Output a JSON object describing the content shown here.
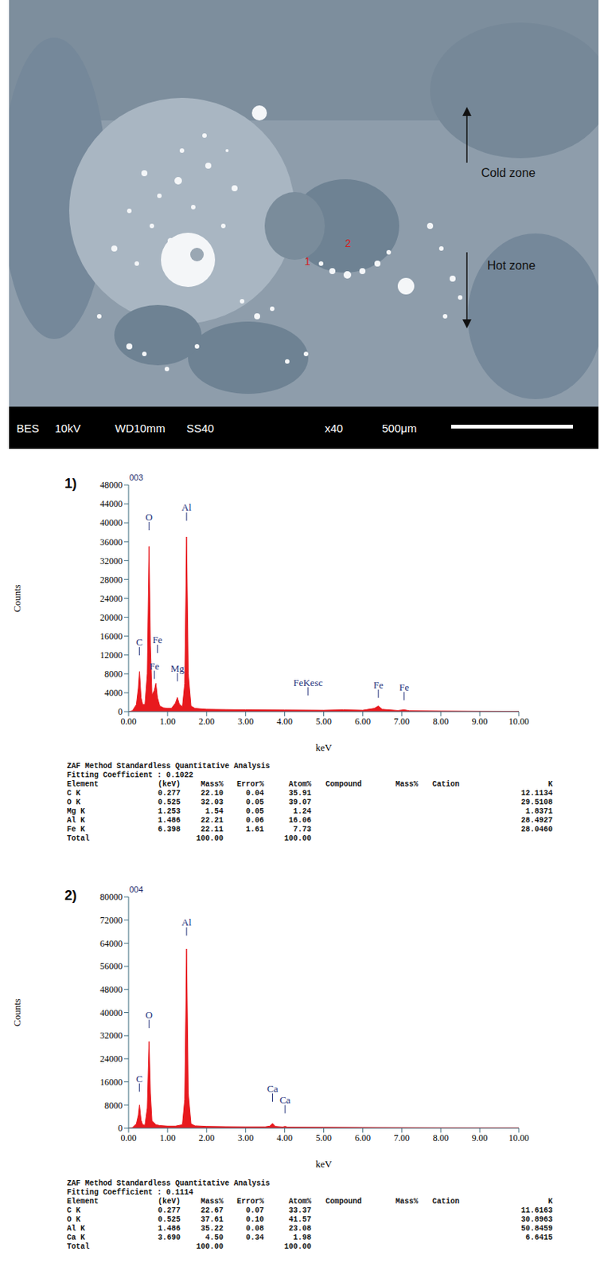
{
  "micrograph": {
    "annotations": [
      "Cold zone",
      "Hot zone"
    ],
    "points": [
      "1",
      "2"
    ],
    "info_bar": [
      "BES",
      "10kV",
      "WD10mm",
      "SS40",
      "x40",
      "500μm"
    ]
  },
  "chart_data": [
    {
      "type": "area",
      "panel": "1)",
      "title": "003",
      "x_label": "keV",
      "y_label": "Counts",
      "color": "#e8191e",
      "xlim": [
        0,
        10
      ],
      "xticks": [
        {
          "value": 0,
          "label": "0.00"
        },
        {
          "value": 1,
          "label": "1.00"
        },
        {
          "value": 2,
          "label": "2.00"
        },
        {
          "value": 3,
          "label": "3.00"
        },
        {
          "value": 4,
          "label": "4.00"
        },
        {
          "value": 5,
          "label": "5.00"
        },
        {
          "value": 6,
          "label": "6.00"
        },
        {
          "value": 7,
          "label": "7.00"
        },
        {
          "value": 8,
          "label": "8.00"
        },
        {
          "value": 9,
          "label": "9.00"
        },
        {
          "value": 10,
          "label": "10.00"
        }
      ],
      "ylim": [
        0,
        48000
      ],
      "yticks": [
        0,
        4000,
        8000,
        12000,
        16000,
        20000,
        24000,
        28000,
        32000,
        36000,
        40000,
        44000,
        48000
      ],
      "x": [
        0,
        0.1,
        0.2,
        0.25,
        0.28,
        0.32,
        0.36,
        0.42,
        0.48,
        0.525,
        0.56,
        0.6,
        0.66,
        0.7,
        0.74,
        0.8,
        0.9,
        1.0,
        1.1,
        1.2,
        1.25,
        1.3,
        1.38,
        1.44,
        1.486,
        1.53,
        1.6,
        1.7,
        2.0,
        2.5,
        3.0,
        4.0,
        5.0,
        5.5,
        6.0,
        6.3,
        6.4,
        6.5,
        6.9,
        7.06,
        7.2,
        8.0,
        9.0,
        10.0
      ],
      "values": [
        0,
        200,
        1500,
        5000,
        8500,
        3000,
        1500,
        1500,
        8000,
        35000,
        14000,
        3500,
        4500,
        6000,
        3000,
        1200,
        800,
        700,
        700,
        1800,
        3000,
        1600,
        1000,
        6000,
        37000,
        8000,
        1200,
        700,
        500,
        450,
        400,
        350,
        300,
        400,
        300,
        700,
        1200,
        500,
        250,
        400,
        200,
        150,
        100,
        80
      ],
      "peak_labels": [
        {
          "label": "C",
          "x": 0.277,
          "y": 14000
        },
        {
          "label": "O",
          "x": 0.525,
          "y": 40500
        },
        {
          "label": "Fe",
          "x": 0.74,
          "y": 14500
        },
        {
          "label": "Fe",
          "x": 0.66,
          "y": 9000
        },
        {
          "label": "Mg",
          "x": 1.253,
          "y": 8500
        },
        {
          "label": "Al",
          "x": 1.486,
          "y": 42500
        },
        {
          "label": "FeKesc",
          "x": 4.6,
          "y": 5500
        },
        {
          "label": "Fe",
          "x": 6.4,
          "y": 5000
        },
        {
          "label": "Fe",
          "x": 7.06,
          "y": 4500
        }
      ],
      "table": {
        "method": "ZAF Method Standardless Quantitative Analysis",
        "fitting": "Fitting Coefficient : 0.1022",
        "columns": [
          "Element",
          "(keV)",
          "Mass%",
          "Error%",
          "Atom%",
          "Compound",
          "Mass%",
          "Cation",
          "K"
        ],
        "rows": [
          [
            "C K",
            "0.277",
            "22.10",
            "0.04",
            "35.91",
            null,
            null,
            null,
            "12.1134"
          ],
          [
            "O K",
            "0.525",
            "32.03",
            "0.05",
            "39.07",
            null,
            null,
            null,
            "29.5108"
          ],
          [
            "Mg K",
            "1.253",
            "1.54",
            "0.05",
            "1.24",
            null,
            null,
            null,
            "1.8371"
          ],
          [
            "Al K",
            "1.486",
            "22.21",
            "0.06",
            "16.06",
            null,
            null,
            null,
            "28.4927"
          ],
          [
            "Fe K",
            "6.398",
            "22.11",
            "1.61",
            "7.73",
            null,
            null,
            null,
            "28.0460"
          ],
          [
            "Total",
            null,
            "100.00",
            null,
            "100.00",
            null,
            null,
            null,
            null
          ]
        ]
      }
    },
    {
      "type": "area",
      "panel": "2)",
      "title": "004",
      "x_label": "keV",
      "y_label": "Counts",
      "color": "#e8191e",
      "xlim": [
        0,
        10
      ],
      "xticks": [
        {
          "value": 0,
          "label": "0.00"
        },
        {
          "value": 1,
          "label": "1.00"
        },
        {
          "value": 2,
          "label": "2.00"
        },
        {
          "value": 3,
          "label": "3.00"
        },
        {
          "value": 4,
          "label": "4.00"
        },
        {
          "value": 5,
          "label": "5.00"
        },
        {
          "value": 6,
          "label": "6.00"
        },
        {
          "value": 7,
          "label": "7.00"
        },
        {
          "value": 8,
          "label": "8.00"
        },
        {
          "value": 9,
          "label": "9.00"
        },
        {
          "value": 10,
          "label": "10.00"
        }
      ],
      "ylim": [
        0,
        80000
      ],
      "yticks": [
        0,
        8000,
        16000,
        24000,
        32000,
        40000,
        48000,
        56000,
        64000,
        72000,
        80000
      ],
      "x": [
        0,
        0.1,
        0.2,
        0.25,
        0.28,
        0.32,
        0.36,
        0.42,
        0.48,
        0.525,
        0.56,
        0.6,
        0.7,
        0.8,
        1.0,
        1.2,
        1.38,
        1.44,
        1.486,
        1.53,
        1.6,
        1.7,
        2.0,
        2.5,
        3.0,
        3.5,
        3.62,
        3.69,
        3.76,
        3.95,
        4.01,
        4.08,
        5.0,
        6.0,
        7.0,
        8.0,
        9.0,
        10.0
      ],
      "values": [
        0,
        200,
        1500,
        4500,
        8000,
        2800,
        1200,
        1000,
        7000,
        30000,
        12000,
        2500,
        1200,
        900,
        700,
        700,
        1200,
        10000,
        62000,
        12000,
        1500,
        800,
        600,
        500,
        450,
        450,
        700,
        1600,
        600,
        400,
        600,
        350,
        300,
        250,
        200,
        150,
        120,
        100
      ],
      "peak_labels": [
        {
          "label": "C",
          "x": 0.277,
          "y": 16000
        },
        {
          "label": "O",
          "x": 0.525,
          "y": 38000
        },
        {
          "label": "Al",
          "x": 1.486,
          "y": 70000
        },
        {
          "label": "Ca",
          "x": 3.69,
          "y": 12500
        },
        {
          "label": "Ca",
          "x": 4.01,
          "y": 8500
        }
      ],
      "table": {
        "method": "ZAF Method Standardless Quantitative Analysis",
        "fitting": "Fitting Coefficient : 0.1114",
        "columns": [
          "Element",
          "(keV)",
          "Mass%",
          "Error%",
          "Atom%",
          "Compound",
          "Mass%",
          "Cation",
          "K"
        ],
        "rows": [
          [
            "C K",
            "0.277",
            "22.67",
            "0.07",
            "33.37",
            null,
            null,
            null,
            "11.6163"
          ],
          [
            "O K",
            "0.525",
            "37.61",
            "0.10",
            "41.57",
            null,
            null,
            null,
            "30.8963"
          ],
          [
            "Al K",
            "1.486",
            "35.22",
            "0.08",
            "23.08",
            null,
            null,
            null,
            "50.8459"
          ],
          [
            "Ca K",
            "3.690",
            "4.50",
            "0.34",
            "1.98",
            null,
            null,
            null,
            "6.6415"
          ],
          [
            "Total",
            null,
            "100.00",
            null,
            "100.00",
            null,
            null,
            null,
            null
          ]
        ]
      }
    }
  ]
}
